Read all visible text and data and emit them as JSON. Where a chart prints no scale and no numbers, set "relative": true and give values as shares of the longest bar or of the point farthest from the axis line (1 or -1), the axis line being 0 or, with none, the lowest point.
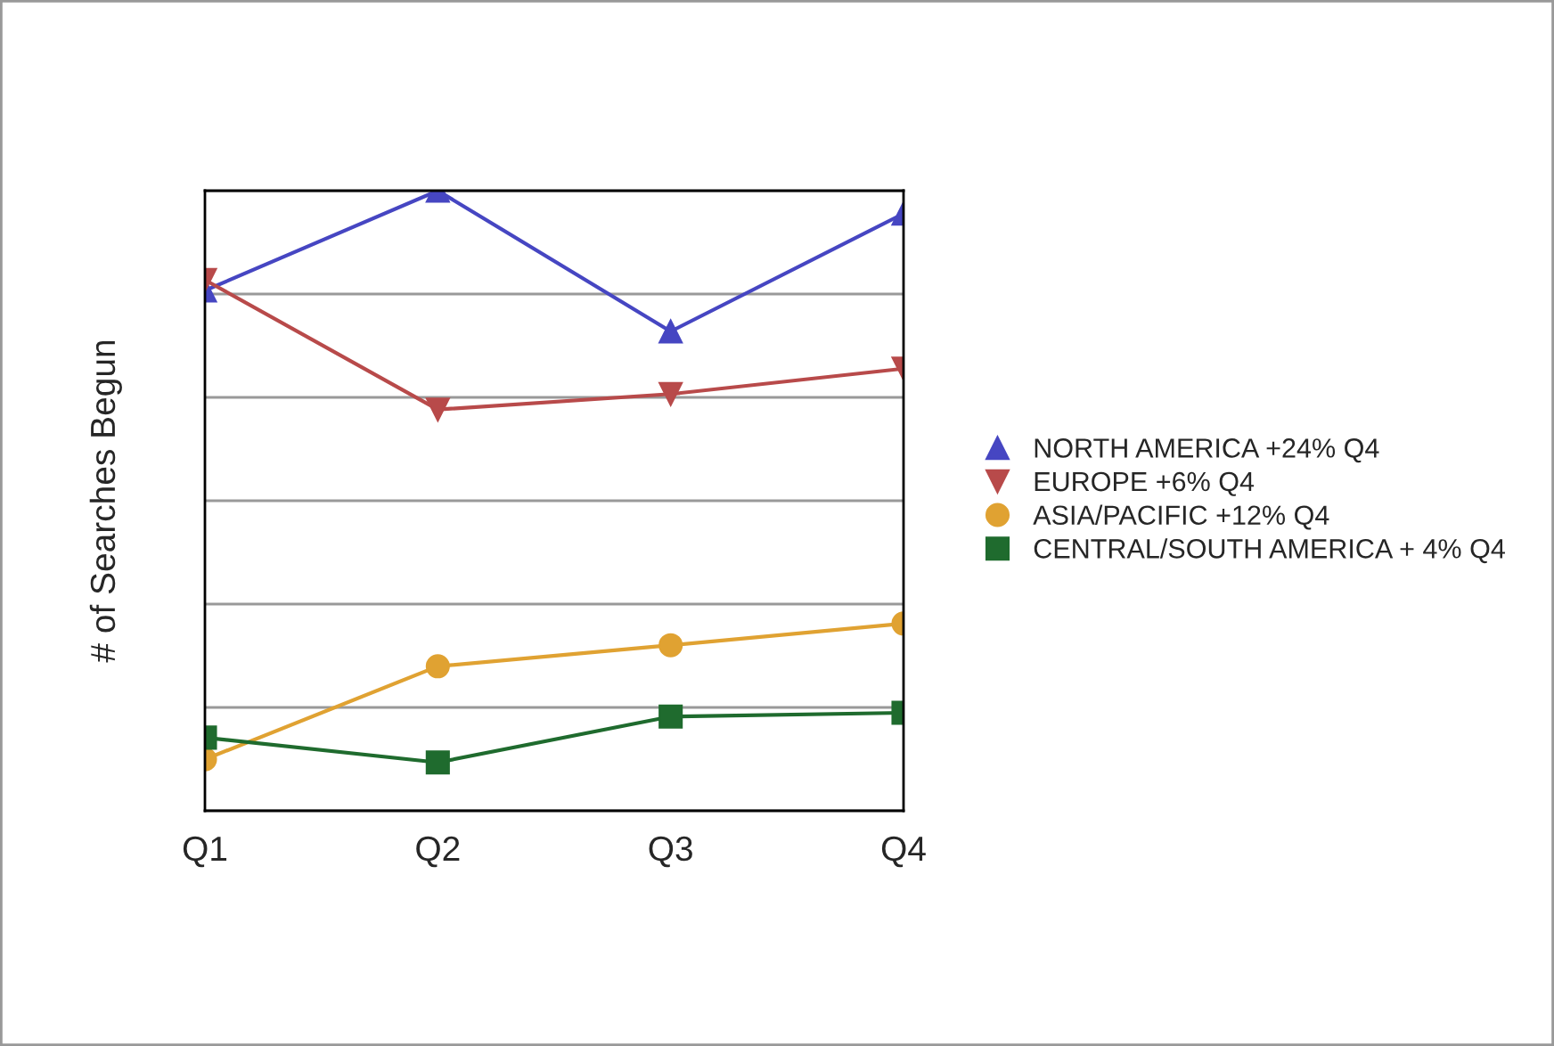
{
  "chart_data": {
    "type": "line",
    "relative": true,
    "ylabel": "# of Searches Begun",
    "categories": [
      "Q1",
      "Q2",
      "Q3",
      "Q4"
    ],
    "series": [
      {
        "name": "NORTH AMERICA +24% Q4",
        "color": "#4646c2",
        "marker": "triangle",
        "values": [
          0.839,
          1,
          0.773,
          0.963
        ]
      },
      {
        "name": "EUROPE +6% Q4",
        "color": "#b84a4a",
        "marker": "triangle_down",
        "values": [
          0.856,
          0.647,
          0.672,
          0.713
        ]
      },
      {
        "name": "ASIA/PACIFIC +12% Q4",
        "color": "#e0a232",
        "marker": "circle",
        "values": [
          0.083,
          0.233,
          0.267,
          0.302
        ]
      },
      {
        "name": "CENTRAL/SOUTH AMERICA + 4% Q4",
        "color": "#1f6b2e",
        "marker": "square",
        "values": [
          0.118,
          0.078,
          0.152,
          0.158
        ]
      }
    ],
    "grid": "y",
    "legend": "right",
    "line_style": "solid"
  }
}
